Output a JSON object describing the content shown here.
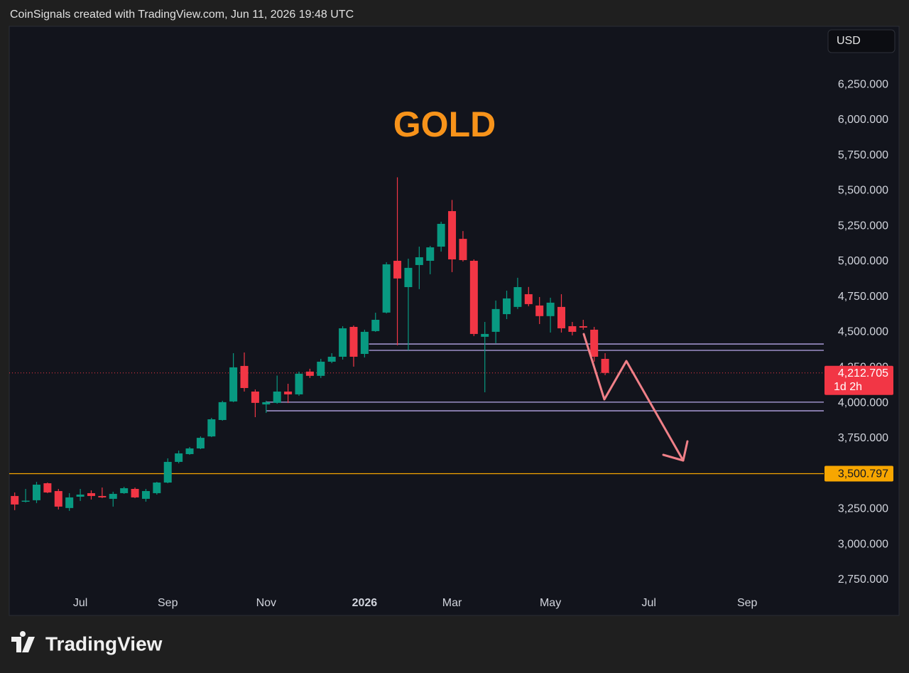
{
  "header": "CoinSignals created with TradingView.com, Jun 11, 2026 19:48 UTC",
  "footer": {
    "brand": "TradingView"
  },
  "chart_data": {
    "type": "candlestick",
    "title": "GOLD",
    "currency": "USD",
    "up_color": "#089981",
    "down_color": "#f23645",
    "open": [
      3343,
      3305,
      3313,
      3433,
      3378,
      3258,
      3338,
      3363,
      3343,
      3323,
      3363,
      3393,
      3323,
      3363,
      3438,
      3584,
      3639,
      3679,
      3764,
      3880,
      4011,
      4262,
      4081,
      3990,
      4001,
      4081,
      4061,
      4222,
      4192,
      4292,
      4327,
      4538,
      4347,
      4508,
      4639,
      5005,
      4819,
      4975,
      5005,
      5105,
      5356,
      5160,
      5005,
      4468,
      4503,
      4628,
      4679,
      4769,
      4689,
      4614,
      4679,
      4543,
      4543,
      4518,
      4312
    ],
    "high": [
      3368,
      3393,
      3443,
      3438,
      3393,
      3363,
      3393,
      3383,
      3403,
      3373,
      3408,
      3403,
      3393,
      3443,
      3609,
      3664,
      3689,
      3764,
      3895,
      4016,
      4352,
      4357,
      4096,
      4016,
      4194,
      4136,
      4222,
      4242,
      4312,
      4352,
      4543,
      4548,
      4518,
      4638,
      4995,
      5595,
      5020,
      5105,
      5110,
      5281,
      5435,
      5215,
      5015,
      4573,
      4724,
      4794,
      4885,
      4820,
      4749,
      4744,
      4769,
      4573,
      4588,
      4538,
      4352
    ],
    "low": [
      3243,
      3297,
      3293,
      3363,
      3248,
      3238,
      3308,
      3318,
      3328,
      3268,
      3358,
      3328,
      3303,
      3353,
      3433,
      3574,
      3634,
      3674,
      3759,
      3875,
      4006,
      4081,
      3900,
      3930,
      3995,
      4000,
      4051,
      4177,
      4177,
      4282,
      4307,
      4257,
      4322,
      4503,
      4633,
      4408,
      4373,
      4805,
      4910,
      5070,
      4925,
      5000,
      4473,
      4076,
      4423,
      4593,
      4664,
      4684,
      4558,
      4498,
      4498,
      4478,
      4518,
      4292,
      4197
    ],
    "close": [
      3283,
      3310,
      3423,
      3368,
      3268,
      3333,
      3353,
      3343,
      3333,
      3358,
      3398,
      3333,
      3378,
      3438,
      3584,
      3644,
      3679,
      3754,
      3885,
      4006,
      4252,
      4106,
      4001,
      4006,
      4081,
      4061,
      4207,
      4192,
      4292,
      4327,
      4528,
      4327,
      4503,
      4588,
      4980,
      4880,
      4955,
      5030,
      5100,
      5266,
      5015,
      5010,
      4488,
      4488,
      4664,
      4739,
      4819,
      4699,
      4614,
      4709,
      4528,
      4503,
      4533,
      4327,
      4212.705
    ],
    "xlim": [
      -0.5,
      74
    ],
    "xticks": [
      {
        "value": 6,
        "label": "Jul"
      },
      {
        "value": 14,
        "label": "Sep"
      },
      {
        "value": 23,
        "label": "Nov"
      },
      {
        "value": 32,
        "label": "2026"
      },
      {
        "value": 40,
        "label": "Mar"
      },
      {
        "value": 49,
        "label": "May"
      },
      {
        "value": 58,
        "label": "Jul"
      },
      {
        "value": 67,
        "label": "Sep"
      }
    ],
    "ylim": [
      2499,
      6662
    ],
    "yticks": [
      {
        "value": 2750,
        "label": "2,750.000"
      },
      {
        "value": 3000,
        "label": "3,000.000"
      },
      {
        "value": 3250,
        "label": "3,250.000"
      },
      {
        "value": 3500,
        "label": "3,500.000"
      },
      {
        "value": 3750,
        "label": "3,750.000"
      },
      {
        "value": 4000,
        "label": "4,000.000"
      },
      {
        "value": 4250,
        "label": "4,250.000"
      },
      {
        "value": 4500,
        "label": "4,500.000"
      },
      {
        "value": 4750,
        "label": "4,750.000"
      },
      {
        "value": 5000,
        "label": "5,000.000"
      },
      {
        "value": 5250,
        "label": "5,250.000"
      },
      {
        "value": 5500,
        "label": "5,500.000"
      },
      {
        "value": 5750,
        "label": "5,750.000"
      },
      {
        "value": 6000,
        "label": "6,000.000"
      },
      {
        "value": 6250,
        "label": "6,250.000"
      }
    ],
    "levels": [
      {
        "value": 4417,
        "start": 32.4,
        "color": "#b7a8e8"
      },
      {
        "value": 4372,
        "start": 32.4,
        "color": "#b7a8e8"
      },
      {
        "value": 4006,
        "start": 23.0,
        "color": "#b7a8e8"
      },
      {
        "value": 3945,
        "start": 23.0,
        "color": "#b7a8e8"
      }
    ],
    "marked_level": {
      "value": 3500.797,
      "label": "3,500.797",
      "color": "#f7a600"
    },
    "last_price": {
      "value": 4212.705,
      "label": "4,212.705",
      "countdown": "1d 2h",
      "color": "#f23645"
    }
  }
}
